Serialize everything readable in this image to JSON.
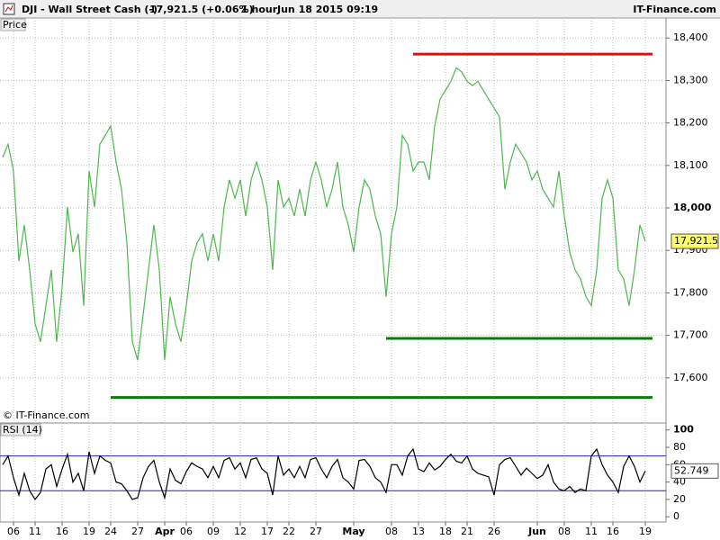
{
  "header": {
    "symbol": "DJI - Wall Street Cash (-)",
    "quote": "17,921.5 (+0.06%)",
    "period": "1 hour",
    "datetime": "Jun 18 2015 09:19",
    "site": "IT-Finance.com"
  },
  "chart_data": [
    {
      "type": "line",
      "title": "Price",
      "source": "© IT-Finance.com",
      "series": [
        {
          "name": "DJI",
          "color": "#4cb84c",
          "values": [
            18119,
            18150,
            18087,
            17875,
            17960,
            17854,
            17727,
            17685,
            17770,
            17854,
            17685,
            17812,
            18002,
            17896,
            17939,
            17770,
            18087,
            18002,
            18150,
            18171,
            18193,
            18108,
            18044,
            17918,
            17685,
            17642,
            17748,
            17854,
            17960,
            17854,
            17642,
            17791,
            17727,
            17685,
            17770,
            17875,
            17918,
            17939,
            17875,
            17939,
            17875,
            18002,
            18066,
            18023,
            18066,
            17981,
            18066,
            18108,
            18066,
            18002,
            17854,
            18066,
            18002,
            18023,
            17981,
            18044,
            17981,
            18066,
            18108,
            18066,
            18002,
            18044,
            18108,
            18002,
            17960,
            17896,
            18002,
            18066,
            18044,
            17981,
            17939,
            17791,
            17939,
            18002,
            18171,
            18150,
            18087,
            18108,
            18108,
            18066,
            18193,
            18256,
            18277,
            18298,
            18330,
            18320,
            18298,
            18288,
            18298,
            18277,
            18256,
            18235,
            18214,
            18044,
            18108,
            18150,
            18129,
            18108,
            18066,
            18087,
            18044,
            18023,
            18002,
            18087,
            17981,
            17896,
            17854,
            17833,
            17791,
            17770,
            17854,
            18023,
            18066,
            18023,
            17854,
            17833,
            17770,
            17854,
            17960,
            17921.5
          ],
          "value_labels": {
            "119": "17,921.5"
          }
        }
      ],
      "hlines": [
        {
          "value": 18362,
          "color": "#e01010",
          "start": 76
        },
        {
          "value": 17693,
          "color": "#0a7a0a",
          "start": 71
        },
        {
          "value": 17554,
          "color": "#0a7a0a",
          "start": 20
        }
      ],
      "ylim": [
        17498,
        18447
      ],
      "yticks": [
        {
          "value": 17600,
          "label": "17,600"
        },
        {
          "value": 17700,
          "label": "17,700"
        },
        {
          "value": 17800,
          "label": "17,800"
        },
        {
          "value": 17900,
          "label": "17,900"
        },
        {
          "value": 18000,
          "label": "18,000"
        },
        {
          "value": 18100,
          "label": "18,100"
        },
        {
          "value": 18200,
          "label": "18,200"
        },
        {
          "value": 18300,
          "label": "18,300"
        },
        {
          "value": 18400,
          "label": "18,400"
        }
      ],
      "grid": true
    },
    {
      "type": "line",
      "title": "RSI (14)",
      "categories": [
        null,
        null,
        "06",
        null,
        null,
        null,
        "11",
        null,
        null,
        null,
        null,
        "16",
        null,
        null,
        null,
        null,
        "19",
        null,
        null,
        null,
        "24",
        null,
        null,
        null,
        null,
        "27",
        null,
        null,
        null,
        null,
        "Apr",
        null,
        null,
        null,
        "06",
        null,
        null,
        null,
        null,
        "09",
        null,
        null,
        null,
        null,
        "12",
        null,
        null,
        null,
        null,
        "17",
        null,
        null,
        null,
        "22",
        null,
        null,
        null,
        null,
        "27",
        null,
        null,
        null,
        null,
        null,
        null,
        "May",
        null,
        null,
        null,
        null,
        null,
        null,
        "08",
        null,
        null,
        null,
        null,
        "13",
        null,
        null,
        null,
        null,
        "18",
        null,
        null,
        null,
        "21",
        null,
        null,
        null,
        null,
        "26",
        null,
        null,
        null,
        null,
        null,
        null,
        null,
        "Jun",
        null,
        null,
        null,
        null,
        "08",
        null,
        null,
        null,
        null,
        "11",
        null,
        null,
        null,
        "16",
        null,
        null,
        null,
        null,
        null,
        "19"
      ],
      "series": [
        {
          "name": "RSI (14)",
          "color": "#000000",
          "values": [
            60,
            70,
            45,
            25,
            50,
            30,
            20,
            28,
            55,
            60,
            35,
            55,
            72,
            40,
            50,
            30,
            75,
            50,
            70,
            65,
            62,
            40,
            38,
            30,
            20,
            22,
            45,
            58,
            65,
            40,
            22,
            55,
            42,
            38,
            52,
            62,
            58,
            55,
            45,
            58,
            45,
            65,
            68,
            55,
            62,
            45,
            66,
            68,
            55,
            50,
            25,
            70,
            48,
            55,
            45,
            58,
            45,
            66,
            68,
            55,
            45,
            58,
            66,
            45,
            40,
            32,
            65,
            66,
            58,
            45,
            40,
            28,
            60,
            60,
            48,
            70,
            78,
            55,
            52,
            62,
            54,
            58,
            66,
            72,
            64,
            62,
            70,
            55,
            50,
            48,
            46,
            25,
            60,
            66,
            68,
            58,
            48,
            56,
            50,
            44,
            48,
            60,
            40,
            32,
            30,
            35,
            28,
            32,
            30,
            70,
            78,
            60,
            48,
            40,
            28,
            58,
            70,
            58,
            40,
            52.749
          ]
        }
      ],
      "bands": {
        "values": [
          30,
          70
        ],
        "color": "#2020c0"
      },
      "ylim": [
        -6,
        108
      ],
      "yticks": [
        0,
        20,
        40,
        60,
        80,
        100
      ]
    }
  ]
}
